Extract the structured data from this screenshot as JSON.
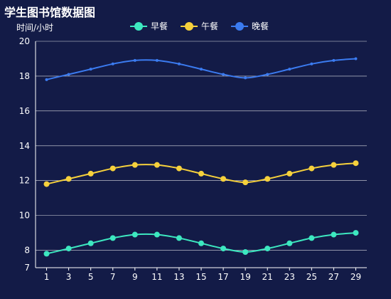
{
  "chart_data": {
    "type": "line",
    "title": "学生图书馆数据图",
    "ylabel": "时间/小时",
    "xlabel": "",
    "x": [
      1,
      3,
      5,
      7,
      9,
      11,
      13,
      15,
      17,
      19,
      21,
      23,
      25,
      27,
      29
    ],
    "ylim": [
      7,
      20
    ],
    "yticks": [
      7,
      8,
      10,
      12,
      14,
      16,
      18,
      20
    ],
    "grid": true,
    "legend_position": "top-center",
    "series": [
      {
        "name": "早餐",
        "color": "#3de8c0",
        "marker": "circle",
        "values": [
          7.8,
          8.1,
          8.4,
          8.7,
          8.9,
          8.9,
          8.7,
          8.4,
          8.1,
          7.9,
          8.1,
          8.4,
          8.7,
          8.9,
          9.0
        ]
      },
      {
        "name": "午餐",
        "color": "#f6d13c",
        "marker": "circle",
        "values": [
          11.8,
          12.1,
          12.4,
          12.7,
          12.9,
          12.9,
          12.7,
          12.4,
          12.1,
          11.9,
          12.1,
          12.4,
          12.7,
          12.9,
          13.0
        ]
      },
      {
        "name": "晚餐",
        "color": "#3b7bf0",
        "marker": "small",
        "values": [
          17.8,
          18.1,
          18.4,
          18.7,
          18.9,
          18.9,
          18.7,
          18.4,
          18.1,
          17.9,
          18.1,
          18.4,
          18.7,
          18.9,
          19.0
        ]
      }
    ]
  }
}
